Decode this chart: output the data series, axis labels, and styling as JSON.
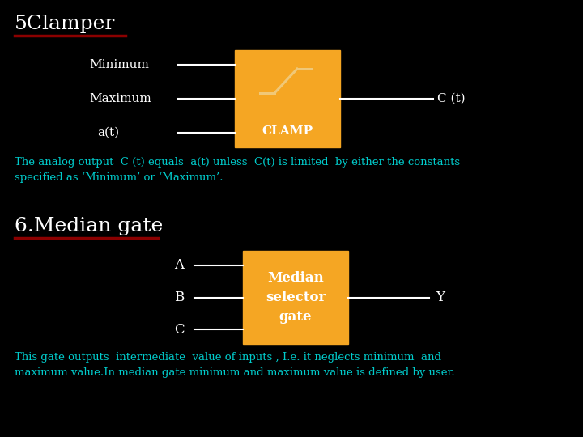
{
  "bg_color": "#000000",
  "title1": "5Clamper",
  "title1_color": "#ffffff",
  "title1_underline_color": "#8b0000",
  "title2": "6.Median gate",
  "title2_color": "#ffffff",
  "title2_underline_color": "#8b0000",
  "box1_color": "#f5a623",
  "box1_label": "CLAMP",
  "box1_label_color": "#ffffff",
  "box1_symbol_color": "#f0c878",
  "box2_color": "#f5a623",
  "box2_label": "Median\nselector\ngate",
  "box2_label_color": "#ffffff",
  "line_color": "#ffffff",
  "text_color": "#ffffff",
  "cyan_color": "#00cccc",
  "input1_labels": [
    "Minimum",
    "Maximum",
    "a(t)"
  ],
  "output1_label": "C (t)",
  "input2_labels": [
    "A",
    "B",
    "C"
  ],
  "output2_label": "Y",
  "desc1": "The analog output  C (t) equals  a(t) unless  C(t) is limited  by either the constants\nspecified as ‘Minimum’ or ‘Maximum’.",
  "desc2": "This gate outputs  intermediate  value of inputs , I.e. it neglects minimum  and\nmaximum value.In median gate minimum and maximum value is defined by user."
}
